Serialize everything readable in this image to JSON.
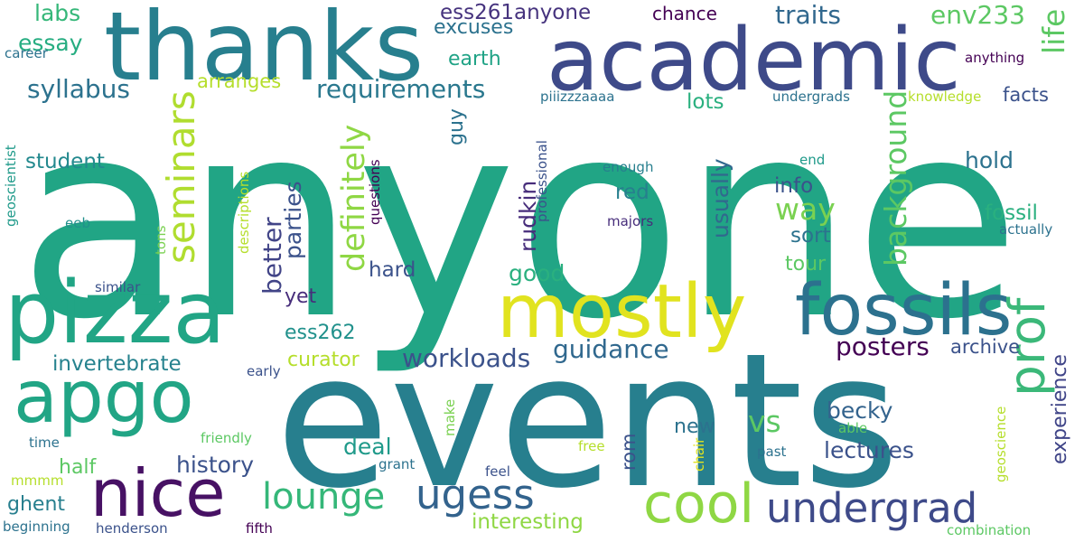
{
  "words": [
    {
      "text": "anyone",
      "color": "#21A585"
    },
    {
      "text": "events",
      "color": "#277F8E"
    },
    {
      "text": "thanks",
      "color": "#277F8E"
    },
    {
      "text": "academic",
      "color": "#3E4A89"
    },
    {
      "text": "pizza",
      "color": "#21A585"
    },
    {
      "text": "mostly",
      "color": "#E1E31F"
    },
    {
      "text": "fossils",
      "color": "#2C718E"
    },
    {
      "text": "apgo",
      "color": "#21A585"
    },
    {
      "text": "nice",
      "color": "#471164"
    },
    {
      "text": "prof",
      "color": "#3BB879"
    },
    {
      "text": "cool",
      "color": "#8FD744"
    },
    {
      "text": "undergrad",
      "color": "#3E4A89"
    },
    {
      "text": "ugess",
      "color": "#33638D"
    },
    {
      "text": "lounge",
      "color": "#35B779"
    },
    {
      "text": "seminars",
      "color": "#B0DD2F"
    },
    {
      "text": "requirements",
      "color": "#2A788E"
    },
    {
      "text": "definitely",
      "color": "#8FD744"
    },
    {
      "text": "background",
      "color": "#5CC863"
    },
    {
      "text": "guidance",
      "color": "#30688E"
    },
    {
      "text": "posters",
      "color": "#440154"
    },
    {
      "text": "workloads",
      "color": "#3B528B"
    },
    {
      "text": "way",
      "color": "#7AD151"
    },
    {
      "text": "vs",
      "color": "#5CC863"
    },
    {
      "text": "life",
      "color": "#5CC863"
    },
    {
      "text": "experience",
      "color": "#404588"
    },
    {
      "text": "ess261anyone",
      "color": "#46337E"
    },
    {
      "text": "env233",
      "color": "#5CC863"
    },
    {
      "text": "traits",
      "color": "#31688E"
    },
    {
      "text": "syllabus",
      "color": "#2C728E"
    },
    {
      "text": "essay",
      "color": "#26AD81"
    },
    {
      "text": "labs",
      "color": "#35B779"
    },
    {
      "text": "better",
      "color": "#414487"
    },
    {
      "text": "parties",
      "color": "#3B528B"
    },
    {
      "text": "rudkin",
      "color": "#472D7B"
    },
    {
      "text": "usually",
      "color": "#31688E"
    },
    {
      "text": "invertebrate",
      "color": "#26828E"
    },
    {
      "text": "deal",
      "color": "#1F9A8A"
    },
    {
      "text": "history",
      "color": "#3B528B"
    },
    {
      "text": "lectures",
      "color": "#3B528B"
    },
    {
      "text": "becky",
      "color": "#33638D"
    },
    {
      "text": "interesting",
      "color": "#8FD744"
    },
    {
      "text": "hard",
      "color": "#3B528B"
    },
    {
      "text": "good",
      "color": "#2AB07F"
    },
    {
      "text": "student",
      "color": "#23898E"
    },
    {
      "text": "ess262",
      "color": "#21918C"
    },
    {
      "text": "curator",
      "color": "#B5DE2B"
    },
    {
      "text": "archive",
      "color": "#3B528B"
    },
    {
      "text": "hold",
      "color": "#2C728E"
    },
    {
      "text": "fossil",
      "color": "#2AB07F"
    },
    {
      "text": "info",
      "color": "#3B528B"
    },
    {
      "text": "sort",
      "color": "#2C728E"
    },
    {
      "text": "tour",
      "color": "#5CC863"
    },
    {
      "text": "red",
      "color": "#277F8E"
    },
    {
      "text": "lots",
      "color": "#2AB07F"
    },
    {
      "text": "facts",
      "color": "#3B528B"
    },
    {
      "text": "earth",
      "color": "#20A386"
    },
    {
      "text": "excuses",
      "color": "#2C728E"
    },
    {
      "text": "arranges",
      "color": "#B5DE2B"
    },
    {
      "text": "chance",
      "color": "#440154"
    },
    {
      "text": "guy",
      "color": "#2C728E"
    },
    {
      "text": "yet",
      "color": "#472D7B"
    },
    {
      "text": "new",
      "color": "#2C728E"
    },
    {
      "text": "rom",
      "color": "#3B528B"
    },
    {
      "text": "half",
      "color": "#5CC863"
    },
    {
      "text": "ghent",
      "color": "#277F8E"
    },
    {
      "text": "knowledge",
      "color": "#B5DE2B"
    },
    {
      "text": "undergrads",
      "color": "#2C728E"
    },
    {
      "text": "anything",
      "color": "#440154"
    },
    {
      "text": "career",
      "color": "#2C728E"
    },
    {
      "text": "geoscientist",
      "color": "#1F9A8A"
    },
    {
      "text": "eeb",
      "color": "#21918C"
    },
    {
      "text": "similar",
      "color": "#3B528B"
    },
    {
      "text": "tons",
      "color": "#7AD151"
    },
    {
      "text": "descriptions",
      "color": "#B5DE2B"
    },
    {
      "text": "questions",
      "color": "#440154"
    },
    {
      "text": "professional",
      "color": "#3B528B"
    },
    {
      "text": "piiizzzaaaa",
      "color": "#2C728E"
    },
    {
      "text": "enough",
      "color": "#277F8E"
    },
    {
      "text": "majors",
      "color": "#472D7B"
    },
    {
      "text": "end",
      "color": "#1F9A8A"
    },
    {
      "text": "actually",
      "color": "#2C728E"
    },
    {
      "text": "early",
      "color": "#3B528B"
    },
    {
      "text": "friendly",
      "color": "#5CC863"
    },
    {
      "text": "time",
      "color": "#2C728E"
    },
    {
      "text": "mmmm",
      "color": "#B5DE2B"
    },
    {
      "text": "beginning",
      "color": "#2C728E"
    },
    {
      "text": "henderson",
      "color": "#3B528B"
    },
    {
      "text": "fifth",
      "color": "#440154"
    },
    {
      "text": "grant",
      "color": "#2C728E"
    },
    {
      "text": "feel",
      "color": "#3B528B"
    },
    {
      "text": "make",
      "color": "#7AD151"
    },
    {
      "text": "free",
      "color": "#B5DE2B"
    },
    {
      "text": "chair",
      "color": "#E1E31F"
    },
    {
      "text": "past",
      "color": "#2C728E"
    },
    {
      "text": "able",
      "color": "#5CC863"
    },
    {
      "text": "geoscience",
      "color": "#B5DE2B"
    },
    {
      "text": "combination",
      "color": "#5CC863"
    }
  ]
}
